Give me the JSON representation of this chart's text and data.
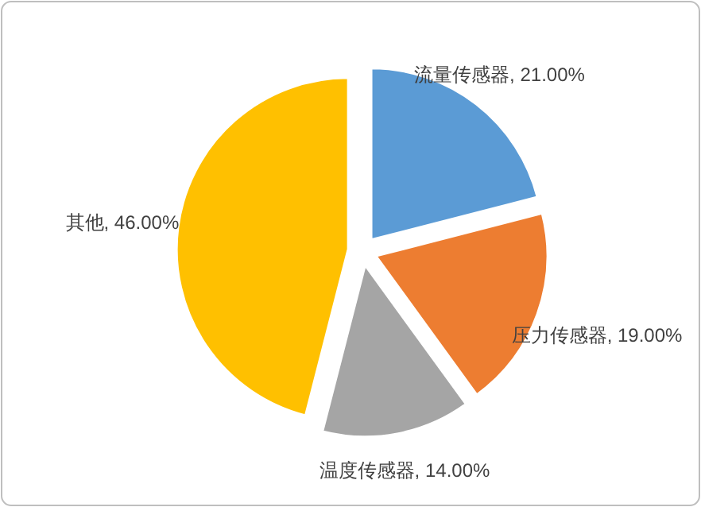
{
  "chart_data": {
    "type": "pie",
    "categories": [
      "流量传感器",
      "压力传感器",
      "温度传感器",
      "其他"
    ],
    "values": [
      21,
      19,
      14,
      46
    ],
    "value_labels": [
      "21.00%",
      "19.00%",
      "14.00%",
      "46.00%"
    ],
    "colors": [
      "#5b9bd5",
      "#ed7d31",
      "#a5a5a5",
      "#ffc000"
    ],
    "legend": false
  }
}
